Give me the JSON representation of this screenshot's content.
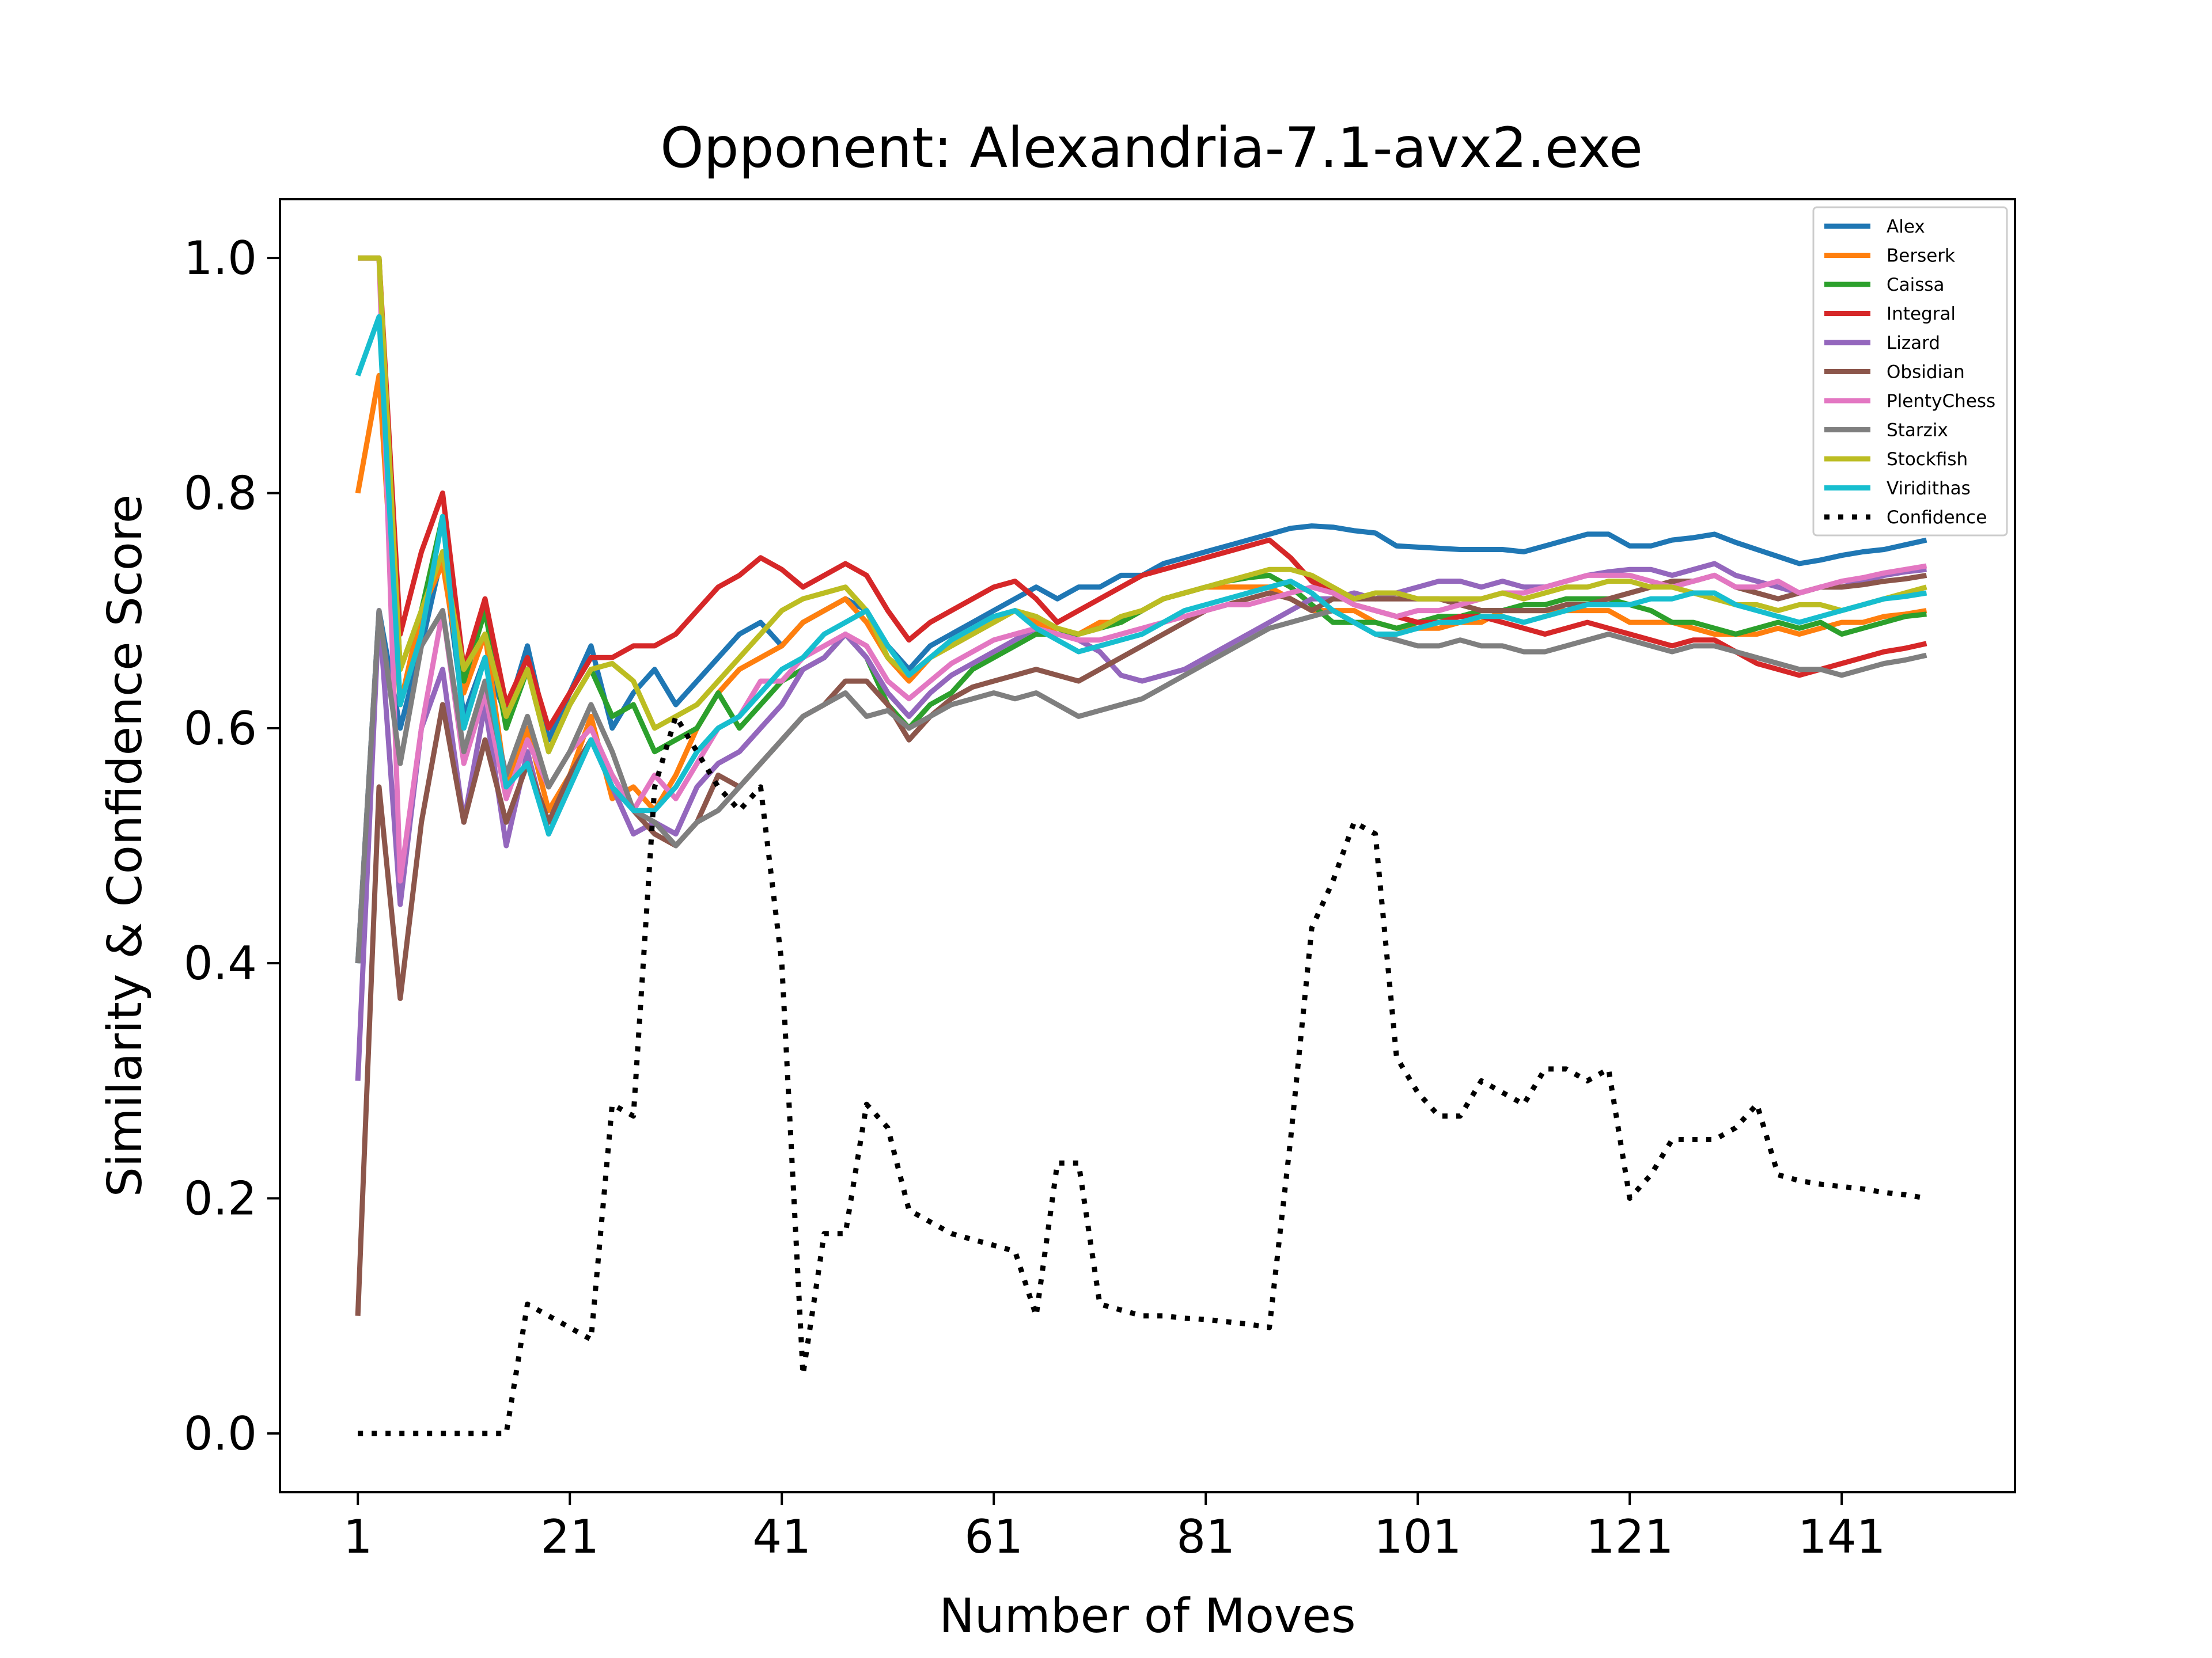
{
  "chart_data": {
    "type": "line",
    "title": "Opponent: Alexandria-7.1-avx2.exe",
    "xlabel": "Number of Moves",
    "ylabel": "Similarity & Confidence Score",
    "xlim": [
      -6.35,
      157.35
    ],
    "ylim": [
      -0.05,
      1.05
    ],
    "xticks": [
      1,
      21,
      41,
      61,
      81,
      101,
      121,
      141
    ],
    "xtick_labels": [
      "1",
      "21",
      "41",
      "61",
      "81",
      "101",
      "121",
      "141"
    ],
    "yticks": [
      0.0,
      0.2,
      0.4,
      0.6,
      0.8,
      1.0
    ],
    "ytick_labels": [
      "0.0",
      "0.2",
      "0.4",
      "0.6",
      "0.8",
      "1.0"
    ],
    "grid": false,
    "legend_position": "upper right",
    "x": [
      1,
      3,
      5,
      7,
      9,
      11,
      13,
      15,
      17,
      19,
      21,
      23,
      25,
      27,
      29,
      31,
      33,
      35,
      37,
      39,
      41,
      43,
      45,
      47,
      49,
      51,
      53,
      55,
      57,
      59,
      61,
      63,
      65,
      67,
      69,
      71,
      73,
      75,
      77,
      79,
      81,
      83,
      85,
      87,
      89,
      91,
      93,
      95,
      97,
      99,
      101,
      103,
      105,
      107,
      109,
      111,
      113,
      115,
      117,
      119,
      121,
      123,
      125,
      127,
      129,
      131,
      133,
      135,
      137,
      139,
      141,
      143,
      145,
      147,
      149
    ],
    "series": [
      {
        "name": "Alex",
        "color": "#1f77b4",
        "dash": "solid",
        "values": [
          0.4,
          0.7,
          0.6,
          0.67,
          0.75,
          0.61,
          0.66,
          0.61,
          0.67,
          0.59,
          0.63,
          0.67,
          0.6,
          0.63,
          0.65,
          0.62,
          0.64,
          0.66,
          0.68,
          0.69,
          0.67,
          0.69,
          0.7,
          0.71,
          0.7,
          0.67,
          0.65,
          0.67,
          0.68,
          0.69,
          0.7,
          0.71,
          0.72,
          0.71,
          0.72,
          0.72,
          0.73,
          0.73,
          0.74,
          0.745,
          0.75,
          0.755,
          0.76,
          0.765,
          0.77,
          0.772,
          0.771,
          0.768,
          0.766,
          0.755,
          0.754,
          0.753,
          0.752,
          0.752,
          0.752,
          0.75,
          0.755,
          0.76,
          0.765,
          0.765,
          0.755,
          0.755,
          0.76,
          0.762,
          0.765,
          0.758,
          0.752,
          0.746,
          0.74,
          0.743,
          0.747,
          0.75,
          0.752,
          0.756,
          0.76
        ]
      },
      {
        "name": "Berserk",
        "color": "#ff7f0e",
        "dash": "solid",
        "values": [
          0.8,
          0.9,
          0.62,
          0.7,
          0.74,
          0.63,
          0.68,
          0.55,
          0.6,
          0.53,
          0.56,
          0.61,
          0.54,
          0.55,
          0.53,
          0.56,
          0.6,
          0.63,
          0.65,
          0.66,
          0.67,
          0.69,
          0.7,
          0.71,
          0.69,
          0.66,
          0.64,
          0.66,
          0.67,
          0.68,
          0.69,
          0.7,
          0.69,
          0.68,
          0.68,
          0.69,
          0.69,
          0.7,
          0.71,
          0.715,
          0.72,
          0.72,
          0.72,
          0.72,
          0.71,
          0.7,
          0.7,
          0.7,
          0.69,
          0.685,
          0.685,
          0.685,
          0.69,
          0.69,
          0.7,
          0.7,
          0.7,
          0.7,
          0.7,
          0.7,
          0.69,
          0.69,
          0.69,
          0.685,
          0.68,
          0.68,
          0.68,
          0.685,
          0.68,
          0.685,
          0.69,
          0.69,
          0.695,
          0.697,
          0.7
        ]
      },
      {
        "name": "Caissa",
        "color": "#2ca02c",
        "dash": "solid",
        "values": [
          1.0,
          1.0,
          0.65,
          0.7,
          0.78,
          0.64,
          0.7,
          0.6,
          0.65,
          0.58,
          0.62,
          0.65,
          0.61,
          0.62,
          0.58,
          0.59,
          0.6,
          0.63,
          0.6,
          0.62,
          0.64,
          0.65,
          0.66,
          0.68,
          0.66,
          0.62,
          0.6,
          0.62,
          0.63,
          0.65,
          0.66,
          0.67,
          0.68,
          0.68,
          0.68,
          0.685,
          0.69,
          0.7,
          0.71,
          0.715,
          0.72,
          0.725,
          0.728,
          0.73,
          0.72,
          0.705,
          0.69,
          0.69,
          0.69,
          0.685,
          0.69,
          0.695,
          0.695,
          0.7,
          0.7,
          0.705,
          0.705,
          0.71,
          0.71,
          0.71,
          0.705,
          0.7,
          0.69,
          0.69,
          0.685,
          0.68,
          0.685,
          0.69,
          0.685,
          0.69,
          0.68,
          0.685,
          0.69,
          0.695,
          0.697
        ]
      },
      {
        "name": "Integral",
        "color": "#d62728",
        "dash": "solid",
        "values": [
          1.0,
          1.0,
          0.68,
          0.75,
          0.8,
          0.65,
          0.71,
          0.62,
          0.66,
          0.6,
          0.63,
          0.66,
          0.66,
          0.67,
          0.67,
          0.68,
          0.7,
          0.72,
          0.73,
          0.745,
          0.735,
          0.72,
          0.73,
          0.74,
          0.73,
          0.7,
          0.675,
          0.69,
          0.7,
          0.71,
          0.72,
          0.725,
          0.71,
          0.69,
          0.7,
          0.71,
          0.72,
          0.73,
          0.735,
          0.74,
          0.745,
          0.75,
          0.755,
          0.76,
          0.745,
          0.725,
          0.715,
          0.705,
          0.7,
          0.695,
          0.69,
          0.69,
          0.695,
          0.695,
          0.69,
          0.685,
          0.68,
          0.685,
          0.69,
          0.685,
          0.68,
          0.675,
          0.67,
          0.675,
          0.675,
          0.665,
          0.655,
          0.65,
          0.645,
          0.65,
          0.655,
          0.66,
          0.665,
          0.668,
          0.672
        ]
      },
      {
        "name": "Lizard",
        "color": "#9467bd",
        "dash": "solid",
        "values": [
          0.3,
          0.7,
          0.45,
          0.6,
          0.65,
          0.52,
          0.62,
          0.5,
          0.58,
          0.51,
          0.55,
          0.59,
          0.55,
          0.51,
          0.52,
          0.51,
          0.55,
          0.57,
          0.58,
          0.6,
          0.62,
          0.65,
          0.66,
          0.68,
          0.66,
          0.63,
          0.61,
          0.63,
          0.645,
          0.655,
          0.665,
          0.675,
          0.685,
          0.68,
          0.675,
          0.665,
          0.645,
          0.64,
          0.645,
          0.65,
          0.66,
          0.67,
          0.68,
          0.69,
          0.7,
          0.71,
          0.71,
          0.715,
          0.71,
          0.715,
          0.72,
          0.725,
          0.725,
          0.72,
          0.725,
          0.72,
          0.72,
          0.725,
          0.73,
          0.733,
          0.735,
          0.735,
          0.73,
          0.735,
          0.74,
          0.73,
          0.725,
          0.72,
          0.715,
          0.72,
          0.72,
          0.725,
          0.73,
          0.733,
          0.735
        ]
      },
      {
        "name": "Obsidian",
        "color": "#8c564b",
        "dash": "solid",
        "values": [
          0.1,
          0.55,
          0.37,
          0.52,
          0.62,
          0.52,
          0.59,
          0.52,
          0.57,
          0.52,
          0.56,
          0.59,
          0.56,
          0.53,
          0.51,
          0.5,
          0.52,
          0.56,
          0.55,
          0.57,
          0.59,
          0.61,
          0.62,
          0.64,
          0.64,
          0.62,
          0.59,
          0.61,
          0.625,
          0.635,
          0.64,
          0.645,
          0.65,
          0.645,
          0.64,
          0.65,
          0.66,
          0.67,
          0.68,
          0.69,
          0.7,
          0.705,
          0.71,
          0.715,
          0.71,
          0.7,
          0.71,
          0.71,
          0.71,
          0.71,
          0.71,
          0.71,
          0.705,
          0.7,
          0.7,
          0.7,
          0.7,
          0.705,
          0.705,
          0.71,
          0.715,
          0.72,
          0.725,
          0.725,
          0.73,
          0.72,
          0.715,
          0.71,
          0.715,
          0.72,
          0.72,
          0.722,
          0.725,
          0.727,
          0.73
        ]
      },
      {
        "name": "PlentyChess",
        "color": "#e377c2",
        "dash": "solid",
        "values": [
          1.0,
          1.0,
          0.47,
          0.6,
          0.7,
          0.57,
          0.63,
          0.54,
          0.59,
          0.55,
          0.58,
          0.6,
          0.56,
          0.53,
          0.56,
          0.54,
          0.57,
          0.6,
          0.61,
          0.64,
          0.64,
          0.66,
          0.67,
          0.68,
          0.67,
          0.64,
          0.625,
          0.64,
          0.655,
          0.665,
          0.675,
          0.68,
          0.685,
          0.68,
          0.675,
          0.675,
          0.68,
          0.685,
          0.69,
          0.695,
          0.7,
          0.705,
          0.705,
          0.71,
          0.715,
          0.72,
          0.715,
          0.705,
          0.7,
          0.695,
          0.7,
          0.7,
          0.705,
          0.71,
          0.715,
          0.715,
          0.72,
          0.725,
          0.73,
          0.73,
          0.73,
          0.725,
          0.72,
          0.725,
          0.73,
          0.72,
          0.72,
          0.725,
          0.715,
          0.72,
          0.725,
          0.728,
          0.732,
          0.735,
          0.738
        ]
      },
      {
        "name": "Starzix",
        "color": "#7f7f7f",
        "dash": "solid",
        "values": [
          0.4,
          0.7,
          0.57,
          0.67,
          0.7,
          0.58,
          0.64,
          0.56,
          0.61,
          0.55,
          0.58,
          0.62,
          0.58,
          0.53,
          0.52,
          0.5,
          0.52,
          0.53,
          0.55,
          0.57,
          0.59,
          0.61,
          0.62,
          0.63,
          0.61,
          0.615,
          0.6,
          0.61,
          0.62,
          0.625,
          0.63,
          0.625,
          0.63,
          0.62,
          0.61,
          0.615,
          0.62,
          0.625,
          0.635,
          0.645,
          0.655,
          0.665,
          0.675,
          0.685,
          0.69,
          0.695,
          0.7,
          0.69,
          0.68,
          0.675,
          0.67,
          0.67,
          0.675,
          0.67,
          0.67,
          0.665,
          0.665,
          0.67,
          0.675,
          0.68,
          0.675,
          0.67,
          0.665,
          0.67,
          0.67,
          0.665,
          0.66,
          0.655,
          0.65,
          0.65,
          0.645,
          0.65,
          0.655,
          0.658,
          0.662
        ]
      },
      {
        "name": "Stockfish",
        "color": "#bcbd22",
        "dash": "solid",
        "values": [
          1.0,
          1.0,
          0.65,
          0.7,
          0.75,
          0.65,
          0.68,
          0.61,
          0.65,
          0.58,
          0.62,
          0.65,
          0.655,
          0.64,
          0.6,
          0.61,
          0.62,
          0.64,
          0.66,
          0.68,
          0.7,
          0.71,
          0.715,
          0.72,
          0.7,
          0.66,
          0.645,
          0.66,
          0.67,
          0.68,
          0.69,
          0.7,
          0.695,
          0.685,
          0.68,
          0.685,
          0.695,
          0.7,
          0.71,
          0.715,
          0.72,
          0.725,
          0.73,
          0.735,
          0.735,
          0.73,
          0.72,
          0.71,
          0.715,
          0.715,
          0.71,
          0.71,
          0.71,
          0.71,
          0.715,
          0.71,
          0.715,
          0.72,
          0.72,
          0.725,
          0.725,
          0.72,
          0.72,
          0.715,
          0.71,
          0.705,
          0.705,
          0.7,
          0.705,
          0.705,
          0.7,
          0.705,
          0.71,
          0.715,
          0.72
        ]
      },
      {
        "name": "Viridithas",
        "color": "#17becf",
        "dash": "solid",
        "values": [
          0.9,
          0.95,
          0.62,
          0.68,
          0.78,
          0.6,
          0.66,
          0.55,
          0.57,
          0.51,
          0.55,
          0.59,
          0.55,
          0.53,
          0.53,
          0.55,
          0.58,
          0.6,
          0.61,
          0.63,
          0.65,
          0.66,
          0.68,
          0.69,
          0.7,
          0.67,
          0.645,
          0.66,
          0.675,
          0.685,
          0.695,
          0.7,
          0.685,
          0.675,
          0.665,
          0.67,
          0.675,
          0.68,
          0.69,
          0.7,
          0.705,
          0.71,
          0.715,
          0.72,
          0.725,
          0.715,
          0.7,
          0.69,
          0.68,
          0.68,
          0.685,
          0.69,
          0.69,
          0.695,
          0.695,
          0.69,
          0.695,
          0.7,
          0.705,
          0.705,
          0.705,
          0.71,
          0.71,
          0.715,
          0.715,
          0.705,
          0.7,
          0.695,
          0.69,
          0.695,
          0.7,
          0.705,
          0.71,
          0.712,
          0.715
        ]
      },
      {
        "name": "Confidence",
        "color": "#000000",
        "dash": "dotted",
        "values": [
          0.0,
          0.0,
          0.0,
          0.0,
          0.0,
          0.0,
          0.0,
          0.0,
          0.11,
          0.1,
          0.09,
          0.08,
          0.28,
          0.27,
          0.55,
          0.61,
          0.58,
          0.55,
          0.53,
          0.55,
          0.4,
          0.05,
          0.17,
          0.17,
          0.28,
          0.26,
          0.19,
          0.18,
          0.17,
          0.165,
          0.16,
          0.155,
          0.1,
          0.23,
          0.23,
          0.11,
          0.105,
          0.1,
          0.1,
          0.098,
          0.097,
          0.095,
          0.093,
          0.09,
          0.25,
          0.43,
          0.47,
          0.52,
          0.51,
          0.32,
          0.29,
          0.27,
          0.27,
          0.3,
          0.29,
          0.28,
          0.31,
          0.31,
          0.3,
          0.31,
          0.2,
          0.22,
          0.25,
          0.25,
          0.25,
          0.26,
          0.28,
          0.22,
          0.215,
          0.212,
          0.21,
          0.208,
          0.205,
          0.203,
          0.2
        ]
      }
    ]
  }
}
